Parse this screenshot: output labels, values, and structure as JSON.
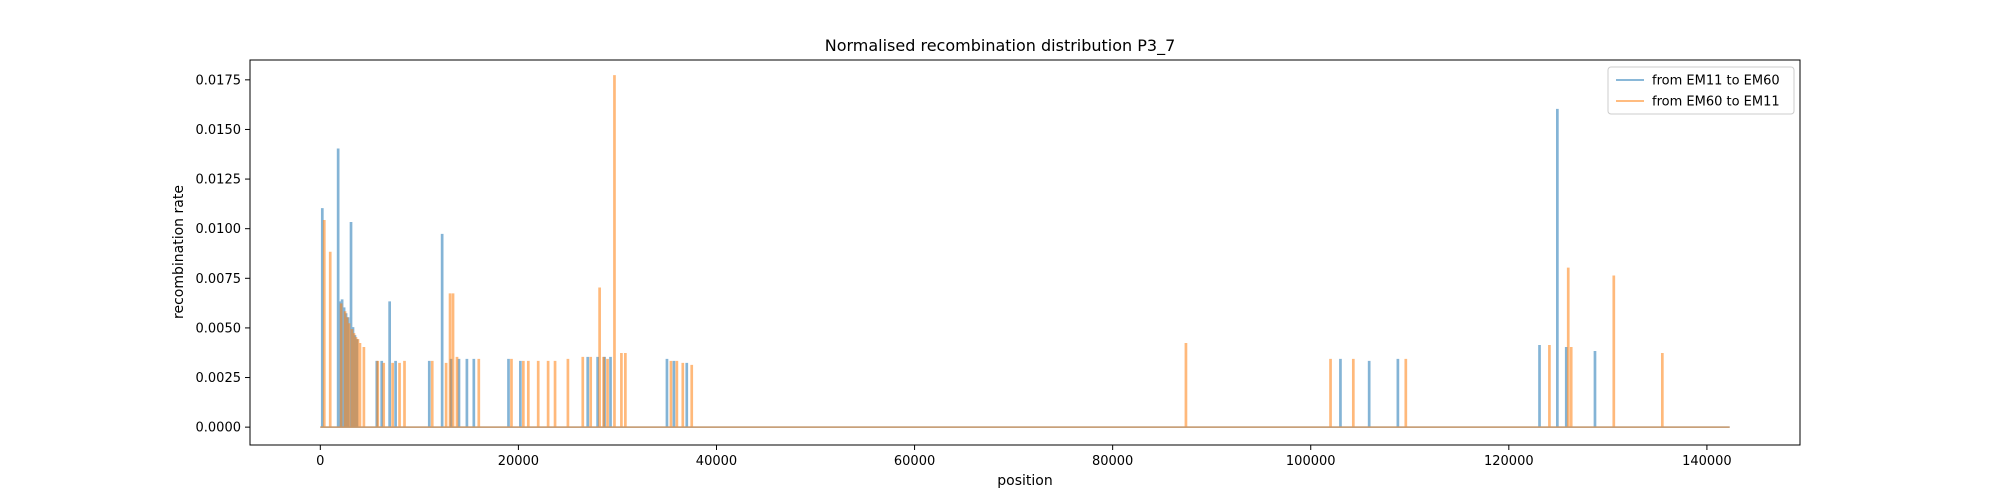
{
  "chart_data": {
    "type": "line",
    "title": "Normalised recombination distribution P3_7",
    "xlabel": "position",
    "ylabel": "recombination rate",
    "xlim": [
      -7100,
      149400
    ],
    "ylim": [
      -0.0009,
      0.0185
    ],
    "xticks": [
      0,
      20000,
      40000,
      60000,
      80000,
      100000,
      120000,
      140000
    ],
    "xtick_labels": [
      "0",
      "20000",
      "40000",
      "60000",
      "80000",
      "100000",
      "120000",
      "140000"
    ],
    "yticks": [
      0.0,
      0.0025,
      0.005,
      0.0075,
      0.01,
      0.0125,
      0.015,
      0.0175
    ],
    "ytick_labels": [
      "0.0000",
      "0.0025",
      "0.0050",
      "0.0075",
      "0.0100",
      "0.0125",
      "0.0150",
      "0.0175"
    ],
    "x_range": [
      0,
      142300
    ],
    "grid": false,
    "legend_position": "upper right",
    "series": [
      {
        "name": "from EM11 to EM60",
        "color": "#1f77b4",
        "spikes": [
          [
            200,
            0.011
          ],
          [
            1800,
            0.014
          ],
          [
            2000,
            0.0063
          ],
          [
            2200,
            0.0064
          ],
          [
            2400,
            0.006
          ],
          [
            2600,
            0.0057
          ],
          [
            2800,
            0.0055
          ],
          [
            3100,
            0.0103
          ],
          [
            3300,
            0.005
          ],
          [
            3500,
            0.0046
          ],
          [
            3700,
            0.0044
          ],
          [
            5700,
            0.0033
          ],
          [
            6200,
            0.0033
          ],
          [
            7000,
            0.0063
          ],
          [
            7600,
            0.0033
          ],
          [
            11000,
            0.0033
          ],
          [
            12300,
            0.0097
          ],
          [
            13200,
            0.0034
          ],
          [
            14000,
            0.0034
          ],
          [
            14800,
            0.0034
          ],
          [
            15500,
            0.0034
          ],
          [
            19000,
            0.0034
          ],
          [
            20200,
            0.0033
          ],
          [
            27000,
            0.0035
          ],
          [
            28000,
            0.0035
          ],
          [
            28700,
            0.0035
          ],
          [
            29300,
            0.0035
          ],
          [
            35000,
            0.0034
          ],
          [
            35700,
            0.0033
          ],
          [
            37000,
            0.0032
          ],
          [
            103000,
            0.0034
          ],
          [
            105900,
            0.0033
          ],
          [
            108800,
            0.0034
          ],
          [
            123100,
            0.0041
          ],
          [
            124900,
            0.016
          ],
          [
            125800,
            0.004
          ],
          [
            128700,
            0.0038
          ]
        ]
      },
      {
        "name": "from EM60 to EM11",
        "color": "#ff7f0e",
        "spikes": [
          [
            400,
            0.0104
          ],
          [
            1000,
            0.0088
          ],
          [
            2100,
            0.0062
          ],
          [
            2500,
            0.0058
          ],
          [
            2700,
            0.0055
          ],
          [
            2900,
            0.0052
          ],
          [
            3200,
            0.0049
          ],
          [
            3400,
            0.0047
          ],
          [
            3600,
            0.0045
          ],
          [
            3800,
            0.0044
          ],
          [
            4000,
            0.0042
          ],
          [
            4400,
            0.004
          ],
          [
            5800,
            0.0033
          ],
          [
            6400,
            0.0032
          ],
          [
            7300,
            0.0032
          ],
          [
            8000,
            0.0032
          ],
          [
            8500,
            0.0033
          ],
          [
            11300,
            0.0033
          ],
          [
            12700,
            0.0032
          ],
          [
            13100,
            0.0067
          ],
          [
            13400,
            0.0067
          ],
          [
            13800,
            0.0035
          ],
          [
            16000,
            0.0034
          ],
          [
            19300,
            0.0034
          ],
          [
            20500,
            0.0033
          ],
          [
            21000,
            0.0033
          ],
          [
            22000,
            0.0033
          ],
          [
            23000,
            0.0033
          ],
          [
            23700,
            0.0033
          ],
          [
            25000,
            0.0034
          ],
          [
            26500,
            0.0035
          ],
          [
            27300,
            0.0035
          ],
          [
            28200,
            0.007
          ],
          [
            28600,
            0.0035
          ],
          [
            29000,
            0.0034
          ],
          [
            29700,
            0.0177
          ],
          [
            30400,
            0.0037
          ],
          [
            30800,
            0.0037
          ],
          [
            35400,
            0.0033
          ],
          [
            36000,
            0.0033
          ],
          [
            36600,
            0.0032
          ],
          [
            37500,
            0.0031
          ],
          [
            87400,
            0.0042
          ],
          [
            102000,
            0.0034
          ],
          [
            104300,
            0.0034
          ],
          [
            109600,
            0.0034
          ],
          [
            124100,
            0.0041
          ],
          [
            126000,
            0.008
          ],
          [
            126300,
            0.004
          ],
          [
            130600,
            0.0076
          ],
          [
            135500,
            0.0037
          ]
        ]
      }
    ]
  }
}
